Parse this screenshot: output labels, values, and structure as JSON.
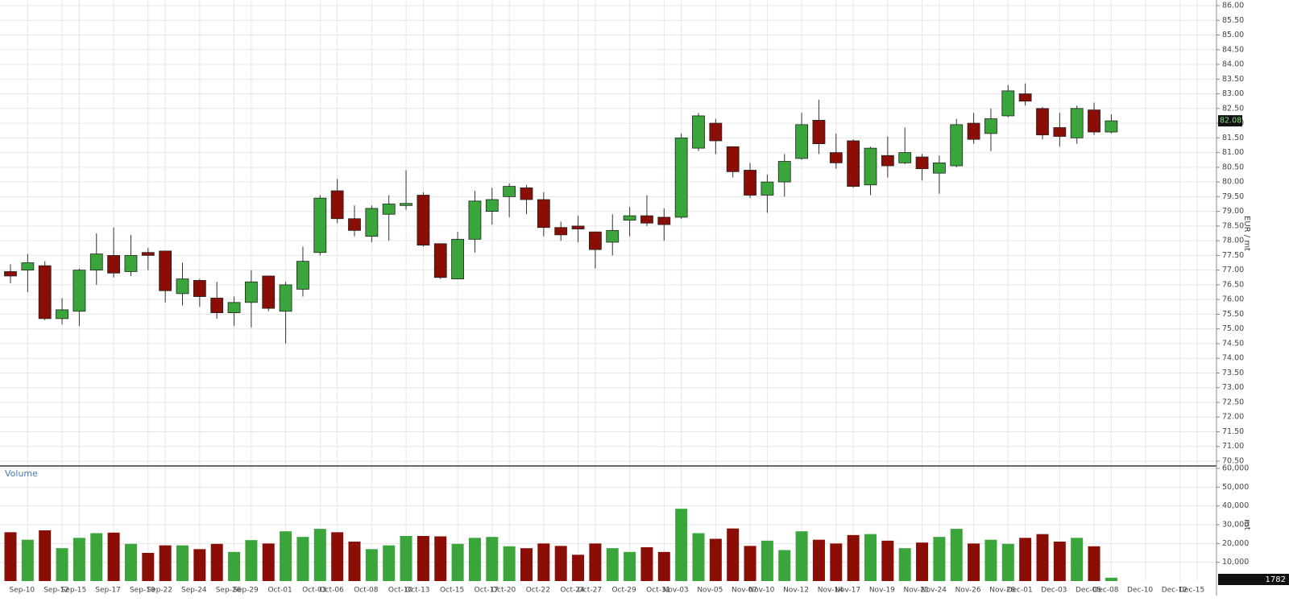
{
  "chart_data": [
    {
      "type": "candlestick",
      "y_label": "EUR / mt",
      "up_color": "#3aa53a",
      "down_color": "#8b0e06",
      "grid": true,
      "categories": [
        null,
        "Sep-10",
        null,
        "Sep-12",
        "Sep-15",
        null,
        "Sep-17",
        null,
        "Sep-19",
        "Sep-22",
        null,
        "Sep-24",
        null,
        "Sep-26",
        "Sep-29",
        null,
        "Oct-01",
        null,
        "Oct-03",
        "Oct-06",
        null,
        "Oct-08",
        null,
        "Oct-10",
        "Oct-13",
        null,
        "Oct-15",
        null,
        "Oct-17",
        "Oct-20",
        null,
        "Oct-22",
        null,
        "Oct-24",
        "Oct-27",
        null,
        "Oct-29",
        null,
        "Oct-31",
        "Nov-03",
        null,
        "Nov-05",
        null,
        "Nov-07",
        "Nov-10",
        null,
        "Nov-12",
        null,
        "Nov-14",
        "Nov-17",
        null,
        "Nov-19",
        null,
        "Nov-21",
        "Nov-24",
        null,
        "Nov-26",
        null,
        "Nov-28",
        "Dec-01",
        null,
        "Dec-03",
        null,
        "Dec-05",
        "Dec-08",
        null,
        "Dec-10",
        null,
        "Dec-12",
        "Dec-15"
      ],
      "open": [
        76.95,
        77.0,
        77.15,
        75.35,
        75.6,
        77.0,
        77.5,
        76.95,
        77.6,
        77.65,
        76.2,
        76.65,
        76.05,
        75.55,
        75.9,
        76.8,
        75.6,
        76.35,
        77.6,
        79.7,
        78.75,
        78.15,
        78.9,
        79.2,
        79.55,
        77.9,
        76.7,
        78.05,
        79.0,
        79.5,
        79.8,
        79.4,
        78.45,
        78.5,
        78.3,
        77.95,
        78.7,
        78.85,
        78.8,
        78.8,
        81.15,
        82.0,
        81.2,
        80.4,
        79.55,
        80.0,
        80.8,
        82.1,
        81.0,
        81.4,
        79.9,
        80.9,
        80.65,
        80.85,
        80.3,
        80.55,
        82.0,
        81.65,
        82.25,
        83.0,
        82.5,
        81.85,
        81.5,
        82.45,
        81.7,
        null,
        null,
        null,
        null,
        null
      ],
      "high": [
        77.2,
        77.55,
        77.3,
        76.05,
        77.05,
        78.25,
        78.45,
        78.2,
        77.75,
        77.65,
        77.25,
        76.7,
        76.6,
        76.1,
        77.0,
        76.8,
        76.6,
        77.8,
        79.55,
        80.1,
        79.2,
        79.2,
        79.55,
        80.4,
        79.65,
        77.9,
        78.3,
        79.7,
        79.8,
        79.95,
        79.9,
        79.65,
        78.65,
        78.85,
        78.3,
        78.9,
        79.15,
        79.55,
        79.1,
        81.65,
        82.35,
        82.15,
        81.2,
        80.65,
        80.25,
        80.95,
        82.35,
        82.8,
        81.65,
        81.45,
        81.2,
        81.55,
        81.85,
        80.95,
        80.9,
        82.15,
        82.35,
        82.5,
        83.3,
        83.35,
        82.55,
        82.35,
        82.6,
        82.7,
        82.3,
        null,
        null,
        null,
        null,
        null
      ],
      "low": [
        76.55,
        76.25,
        75.3,
        75.15,
        75.1,
        76.5,
        76.75,
        76.8,
        77.0,
        75.9,
        75.8,
        75.75,
        75.35,
        75.1,
        75.05,
        75.6,
        74.5,
        76.1,
        77.5,
        78.6,
        78.15,
        77.95,
        78.0,
        79.05,
        77.8,
        76.7,
        76.7,
        77.6,
        78.55,
        78.8,
        78.9,
        78.15,
        78.0,
        77.95,
        77.05,
        77.5,
        78.15,
        78.5,
        78.0,
        78.75,
        81.05,
        80.95,
        80.15,
        79.45,
        78.95,
        79.5,
        80.75,
        80.95,
        80.45,
        79.8,
        79.55,
        80.15,
        80.6,
        80.05,
        79.6,
        80.5,
        81.3,
        81.05,
        82.2,
        82.6,
        81.45,
        81.2,
        81.3,
        81.6,
        81.65,
        null,
        null,
        null,
        null,
        null
      ],
      "close": [
        76.8,
        77.25,
        75.35,
        75.65,
        77.0,
        77.55,
        76.9,
        77.5,
        77.5,
        76.3,
        76.7,
        76.1,
        75.55,
        75.9,
        76.6,
        75.7,
        76.5,
        77.3,
        79.45,
        78.75,
        78.35,
        79.1,
        79.25,
        79.27,
        77.85,
        76.75,
        78.05,
        79.35,
        79.4,
        79.85,
        79.4,
        78.45,
        78.2,
        78.4,
        77.7,
        78.35,
        78.85,
        78.6,
        78.55,
        81.5,
        82.25,
        81.4,
        80.35,
        79.55,
        80.0,
        80.7,
        81.95,
        81.3,
        80.65,
        79.85,
        81.15,
        80.55,
        81.0,
        80.45,
        80.65,
        81.95,
        81.45,
        82.15,
        83.1,
        82.75,
        81.6,
        81.55,
        82.5,
        81.7,
        82.08,
        null,
        null,
        null,
        null,
        null
      ],
      "ylim": [
        70.5,
        86
      ],
      "yticks": [
        {
          "value": 70.5,
          "label": "70.50"
        },
        {
          "value": 71,
          "label": "71.00"
        },
        {
          "value": 71.5,
          "label": "71.50"
        },
        {
          "value": 72,
          "label": "72.00"
        },
        {
          "value": 72.5,
          "label": "72.50"
        },
        {
          "value": 73,
          "label": "73.00"
        },
        {
          "value": 73.5,
          "label": "73.50"
        },
        {
          "value": 74,
          "label": "74.00"
        },
        {
          "value": 74.5,
          "label": "74.50"
        },
        {
          "value": 75,
          "label": "75.00"
        },
        {
          "value": 75.5,
          "label": "75.50"
        },
        {
          "value": 76,
          "label": "76.00"
        },
        {
          "value": 76.5,
          "label": "76.50"
        },
        {
          "value": 77,
          "label": "77.00"
        },
        {
          "value": 77.5,
          "label": "77.50"
        },
        {
          "value": 78,
          "label": "78.00"
        },
        {
          "value": 78.5,
          "label": "78.50"
        },
        {
          "value": 79,
          "label": "79.00"
        },
        {
          "value": 79.5,
          "label": "79.50"
        },
        {
          "value": 80,
          "label": "80.00"
        },
        {
          "value": 80.5,
          "label": "80.50"
        },
        {
          "value": 81,
          "label": "81.00"
        },
        {
          "value": 81.5,
          "label": "81.50"
        },
        {
          "value": 82,
          "label": "82.00"
        },
        {
          "value": 82.5,
          "label": "82.50"
        },
        {
          "value": 83,
          "label": "83.00"
        },
        {
          "value": 83.5,
          "label": "83.50"
        },
        {
          "value": 84,
          "label": "84.00"
        },
        {
          "value": 84.5,
          "label": "84.50"
        },
        {
          "value": 85,
          "label": "85.00"
        },
        {
          "value": 85.5,
          "label": "85.50"
        },
        {
          "value": 86,
          "label": "86.00"
        }
      ]
    },
    {
      "type": "bar",
      "title": "Volume",
      "y_label": "mt",
      "grid": true,
      "values": [
        26000,
        22000,
        27000,
        17500,
        23000,
        25500,
        25800,
        19800,
        15000,
        19000,
        19000,
        17000,
        19800,
        15500,
        21800,
        20000,
        26500,
        23500,
        27800,
        26000,
        21000,
        17000,
        19000,
        24000,
        24000,
        23800,
        19800,
        23000,
        23500,
        18500,
        17500,
        20000,
        18700,
        14000,
        20000,
        17500,
        15500,
        18000,
        15500,
        38500,
        25500,
        22500,
        28000,
        18700,
        21500,
        16500,
        26500,
        22000,
        20000,
        24500,
        25000,
        21500,
        17500,
        20500,
        23500,
        27800,
        20000,
        22000,
        19800,
        23000,
        25000,
        21000,
        23000,
        18500,
        1782,
        null,
        null,
        null,
        null,
        null
      ],
      "ylim": [
        0,
        60000
      ],
      "yticks": [
        {
          "value": 10000,
          "label": "10,000"
        },
        {
          "value": 20000,
          "label": "20,000"
        },
        {
          "value": 30000,
          "label": "30,000"
        },
        {
          "value": 40000,
          "label": "40,000"
        },
        {
          "value": 50000,
          "label": "50,000"
        },
        {
          "value": 60000,
          "label": "60,000"
        }
      ]
    }
  ]
}
